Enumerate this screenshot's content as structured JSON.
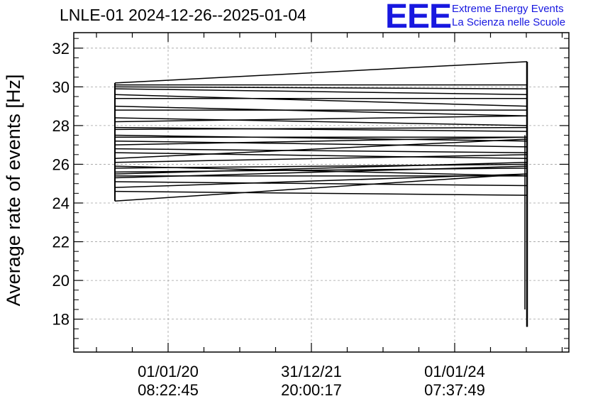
{
  "header": {
    "title": "LNLE-01 2024-12-26--2025-01-04",
    "logo_text": "EEE",
    "brand_line1": "Extreme Energy Events",
    "brand_line2": "La Scienza nelle Scuole"
  },
  "colors": {
    "brand": "#1818e0",
    "line": "#000000",
    "grid": "#a0a0a0"
  },
  "chart_data": {
    "type": "line",
    "title": "LNLE-01 2024-12-26--2025-01-04",
    "xlabel": "",
    "ylabel": "Average rate of events [Hz]",
    "ylim": [
      16.3,
      32.8
    ],
    "y_ticks": [
      18,
      20,
      22,
      24,
      26,
      28,
      30,
      32
    ],
    "y_tick_labels": [
      "18",
      "20",
      "22",
      "24",
      "26",
      "28",
      "30",
      "32"
    ],
    "x_tick_labels": [
      {
        "date": "01/01/20",
        "time": "08:22:45"
      },
      {
        "date": "31/12/21",
        "time": "20:00:17"
      },
      {
        "date": "01/01/24",
        "time": "07:37:49"
      }
    ],
    "grid": true,
    "series": [
      {
        "x_index": [
          0,
          1
        ],
        "segments": [
          [
            30.2,
            31.3
          ],
          [
            30.1,
            30.1
          ],
          [
            30.0,
            29.9
          ],
          [
            29.9,
            29.6
          ],
          [
            29.6,
            29.0
          ],
          [
            29.4,
            29.4
          ],
          [
            29.0,
            28.5
          ],
          [
            28.8,
            28.8
          ],
          [
            28.4,
            28.0
          ],
          [
            28.2,
            28.5
          ],
          [
            27.9,
            27.7
          ],
          [
            27.8,
            27.9
          ],
          [
            27.5,
            27.2
          ],
          [
            27.4,
            27.4
          ],
          [
            27.2,
            26.9
          ],
          [
            27.0,
            27.4
          ],
          [
            26.8,
            26.6
          ],
          [
            26.6,
            26.3
          ],
          [
            26.3,
            27.3
          ],
          [
            26.1,
            26.5
          ],
          [
            25.9,
            25.4
          ],
          [
            25.8,
            26.0
          ],
          [
            25.6,
            25.8
          ],
          [
            25.5,
            26.1
          ],
          [
            25.4,
            25.4
          ],
          [
            25.3,
            25.9
          ],
          [
            25.1,
            24.9
          ],
          [
            24.8,
            25.5
          ],
          [
            24.6,
            24.4
          ],
          [
            24.1,
            25.5
          ]
        ],
        "end_drop_min": 17.6
      }
    ]
  }
}
